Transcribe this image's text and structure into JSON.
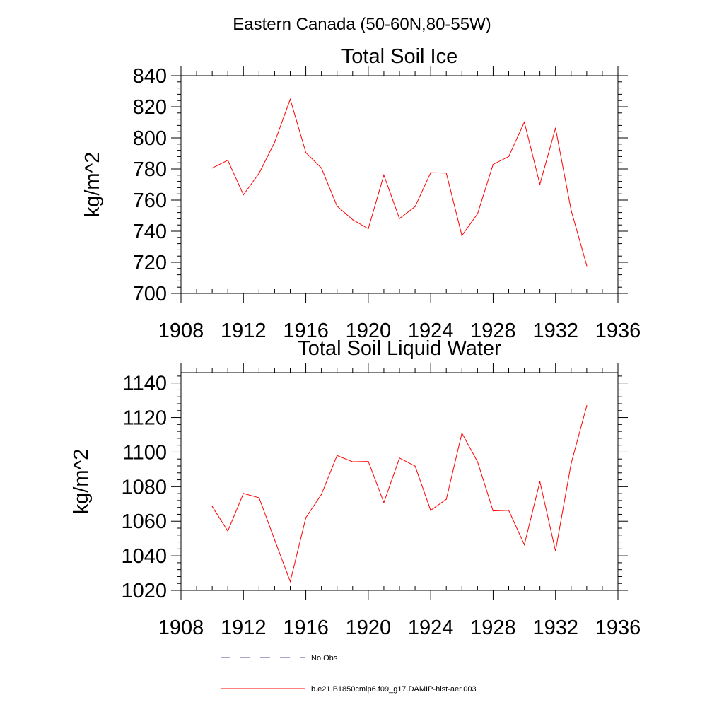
{
  "figure": {
    "title": "Eastern Canada (50-60N,80-55W)"
  },
  "chart_data": [
    {
      "type": "line",
      "title": "Total Soil Ice",
      "xlabel": "",
      "ylabel": "kg/m^2",
      "xlim": [
        1908,
        1936
      ],
      "ylim": [
        700,
        840
      ],
      "xticks": [
        1908,
        1912,
        1916,
        1920,
        1924,
        1928,
        1932,
        1936
      ],
      "yticks": [
        700,
        720,
        740,
        760,
        780,
        800,
        820,
        840
      ],
      "x": [
        1910,
        1911,
        1912,
        1913,
        1914,
        1915,
        1916,
        1917,
        1918,
        1919,
        1920,
        1921,
        1922,
        1923,
        1924,
        1925,
        1926,
        1927,
        1928,
        1929,
        1930,
        1931,
        1932,
        1933,
        1934
      ],
      "series": [
        {
          "name": "b.e21.B1850cmip6.f09_g17.DAMIP-hist-aer.003",
          "color": "#ff0000",
          "values": [
            780.6,
            785.6,
            763.4,
            777.2,
            797.2,
            824.8,
            790.5,
            780.6,
            756.2,
            747.4,
            741.6,
            776.1,
            748.1,
            755.8,
            777.6,
            777.4,
            737.2,
            751.2,
            782.9,
            788.0,
            810.1,
            770.2,
            806.3,
            753.4,
            717.8
          ]
        }
      ]
    },
    {
      "type": "line",
      "title": "Total Soil Liquid Water",
      "xlabel": "",
      "ylabel": "kg/m^2",
      "xlim": [
        1908,
        1936
      ],
      "ylim": [
        1020,
        1146
      ],
      "xticks": [
        1908,
        1912,
        1916,
        1920,
        1924,
        1928,
        1932,
        1936
      ],
      "yticks": [
        1020,
        1040,
        1060,
        1080,
        1100,
        1120,
        1140
      ],
      "x": [
        1910,
        1911,
        1912,
        1913,
        1914,
        1915,
        1916,
        1917,
        1918,
        1919,
        1920,
        1921,
        1922,
        1923,
        1924,
        1925,
        1926,
        1927,
        1928,
        1929,
        1930,
        1931,
        1932,
        1933,
        1934
      ],
      "series": [
        {
          "name": "b.e21.B1850cmip6.f09_g17.DAMIP-hist-aer.003",
          "color": "#ff0000",
          "values": [
            1068.6,
            1054.3,
            1076.1,
            1073.6,
            1049.3,
            1025.1,
            1062.1,
            1075.5,
            1098.0,
            1094.4,
            1094.6,
            1070.8,
            1096.6,
            1091.9,
            1066.3,
            1072.7,
            1111.0,
            1094.4,
            1066.0,
            1066.3,
            1046.4,
            1082.9,
            1042.8,
            1093.4,
            1126.9
          ]
        }
      ]
    }
  ],
  "legend": {
    "entries": [
      {
        "label": "No Obs",
        "color": "#4a4aa0",
        "style": "dashed"
      },
      {
        "label": "b.e21.B1850cmip6.f09_g17.DAMIP-hist-aer.003",
        "color": "#ff0000",
        "style": "solid"
      }
    ]
  }
}
